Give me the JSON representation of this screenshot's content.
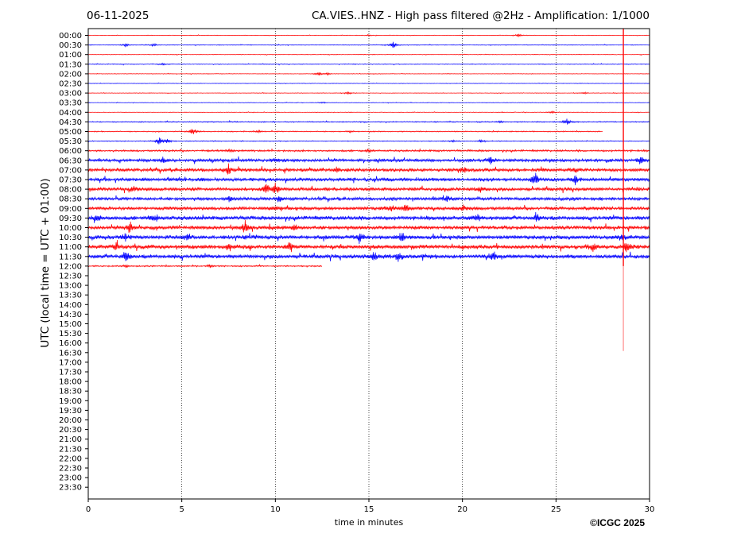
{
  "header": {
    "date": "06-11-2025",
    "title": "CA.VIES..HNZ - High pass filtered @2Hz - Amplification: 1/1000"
  },
  "copyright": "©ICGC 2025",
  "chart_data": {
    "type": "line",
    "title": "CA.VIES..HNZ - High pass filtered @2Hz - Amplification: 1/1000",
    "xlabel": "time in minutes",
    "ylabel": "UTC (local time = UTC + 01:00)",
    "xlim": [
      0,
      30
    ],
    "x_ticks": [
      0,
      5,
      10,
      15,
      20,
      25,
      30
    ],
    "grid": "vertical dotted lines at 5-minute ticks",
    "y_tick_labels": [
      "00:00",
      "00:30",
      "01:00",
      "01:30",
      "02:00",
      "02:30",
      "03:00",
      "03:30",
      "04:00",
      "04:30",
      "05:00",
      "05:30",
      "06:00",
      "06:30",
      "07:00",
      "07:30",
      "08:00",
      "08:30",
      "09:00",
      "09:30",
      "10:00",
      "10:30",
      "11:00",
      "11:30",
      "12:00",
      "12:30",
      "13:00",
      "13:30",
      "14:00",
      "14:30",
      "15:00",
      "15:30",
      "16:00",
      "16:30",
      "17:00",
      "17:30",
      "18:00",
      "18:30",
      "19:00",
      "19:30",
      "20:00",
      "20:30",
      "21:00",
      "21:30",
      "22:00",
      "22:30",
      "23:00",
      "23:30"
    ],
    "colors": {
      "even_rows": "#ff0000",
      "odd_rows": "#0000ff",
      "spike": "#ff8080"
    },
    "traces": [
      {
        "row": "00:00",
        "color": "red",
        "end_min": 30,
        "amp": 0.3,
        "events": [
          [
            15,
            1
          ],
          [
            23,
            1.5
          ]
        ]
      },
      {
        "row": "00:30",
        "color": "blue",
        "end_min": 30,
        "amp": 0.4,
        "events": [
          [
            2,
            2
          ],
          [
            3.5,
            1.5
          ],
          [
            16.3,
            4
          ]
        ]
      },
      {
        "row": "01:00",
        "color": "red",
        "end_min": 30,
        "amp": 0.3,
        "events": []
      },
      {
        "row": "01:30",
        "color": "blue",
        "end_min": 30,
        "amp": 0.4,
        "events": [
          [
            4,
            1
          ]
        ]
      },
      {
        "row": "02:00",
        "color": "red",
        "end_min": 30,
        "amp": 0.3,
        "events": [
          [
            12.3,
            2.5
          ],
          [
            12.8,
            1.5
          ]
        ]
      },
      {
        "row": "02:30",
        "color": "blue",
        "end_min": 30,
        "amp": 0.3,
        "events": []
      },
      {
        "row": "03:00",
        "color": "red",
        "end_min": 30,
        "amp": 0.3,
        "events": [
          [
            13.9,
            2
          ],
          [
            26.5,
            1.2
          ]
        ]
      },
      {
        "row": "03:30",
        "color": "blue",
        "end_min": 30,
        "amp": 0.3,
        "events": [
          [
            12.5,
            1
          ]
        ]
      },
      {
        "row": "04:00",
        "color": "red",
        "end_min": 30,
        "amp": 0.3,
        "events": [
          [
            24.8,
            1.5
          ]
        ]
      },
      {
        "row": "04:30",
        "color": "blue",
        "end_min": 30,
        "amp": 0.6,
        "events": [
          [
            22,
            1
          ],
          [
            25.6,
            4
          ]
        ]
      },
      {
        "row": "05:00",
        "color": "red",
        "end_min": 27.5,
        "amp": 0.6,
        "events": [
          [
            5.6,
            4
          ],
          [
            9.1,
            1.5
          ],
          [
            14,
            1
          ]
        ]
      },
      {
        "row": "05:30",
        "color": "blue",
        "end_min": 30,
        "amp": 0.5,
        "events": [
          [
            3.8,
            5
          ],
          [
            4.2,
            3
          ],
          [
            19.5,
            1.5
          ],
          [
            21,
            1.5
          ]
        ]
      },
      {
        "row": "06:00",
        "color": "red",
        "end_min": 30,
        "amp": 1.1,
        "events": [
          [
            7.5,
            2
          ],
          [
            15,
            2
          ]
        ]
      },
      {
        "row": "06:30",
        "color": "blue",
        "end_min": 30,
        "amp": 1.8,
        "events": [
          [
            4,
            3
          ],
          [
            10,
            3
          ],
          [
            21.5,
            4
          ],
          [
            29.5,
            5
          ]
        ]
      },
      {
        "row": "07:00",
        "color": "red",
        "end_min": 30,
        "amp": 2.0,
        "events": [
          [
            7.5,
            5
          ],
          [
            13.3,
            3
          ],
          [
            20,
            3
          ],
          [
            26,
            3
          ]
        ]
      },
      {
        "row": "07:30",
        "color": "blue",
        "end_min": 30,
        "amp": 2.0,
        "events": [
          [
            23.9,
            7
          ],
          [
            26,
            5
          ]
        ]
      },
      {
        "row": "08:00",
        "color": "red",
        "end_min": 30,
        "amp": 2.0,
        "events": [
          [
            2.5,
            3
          ],
          [
            9.5,
            7
          ],
          [
            10,
            6
          ],
          [
            21,
            4
          ]
        ]
      },
      {
        "row": "08:30",
        "color": "blue",
        "end_min": 30,
        "amp": 1.8,
        "events": [
          [
            7.6,
            3
          ],
          [
            10.2,
            4
          ],
          [
            19.2,
            4
          ]
        ]
      },
      {
        "row": "09:00",
        "color": "red",
        "end_min": 30,
        "amp": 2.0,
        "events": [
          [
            10,
            3
          ],
          [
            16.2,
            5
          ],
          [
            17,
            5
          ],
          [
            20,
            4
          ]
        ]
      },
      {
        "row": "09:30",
        "color": "blue",
        "end_min": 30,
        "amp": 2.4,
        "events": [
          [
            0.5,
            4
          ],
          [
            3.6,
            4
          ],
          [
            20.7,
            4
          ],
          [
            24,
            3
          ]
        ]
      },
      {
        "row": "10:00",
        "color": "red",
        "end_min": 30,
        "amp": 2.2,
        "events": [
          [
            2.2,
            7
          ],
          [
            8.4,
            7
          ],
          [
            11,
            4
          ]
        ]
      },
      {
        "row": "10:30",
        "color": "blue",
        "end_min": 30,
        "amp": 2.4,
        "events": [
          [
            2,
            5
          ],
          [
            5.3,
            4
          ],
          [
            14.5,
            6
          ],
          [
            16.8,
            6
          ],
          [
            28.5,
            5
          ]
        ]
      },
      {
        "row": "11:00",
        "color": "red",
        "end_min": 30,
        "amp": 2.4,
        "events": [
          [
            1.5,
            4
          ],
          [
            7.5,
            5
          ],
          [
            10.8,
            6
          ],
          [
            27,
            5
          ],
          [
            28.8,
            7
          ]
        ]
      },
      {
        "row": "11:30",
        "color": "blue",
        "end_min": 30,
        "amp": 2.4,
        "events": [
          [
            2,
            6
          ],
          [
            15.3,
            6
          ],
          [
            16.6,
            5
          ],
          [
            21.6,
            7
          ]
        ]
      },
      {
        "row": "12:00",
        "color": "red",
        "end_min": 12.5,
        "amp": 0.8,
        "events": [
          [
            2,
            1.5
          ],
          [
            6.5,
            1.5
          ]
        ]
      }
    ],
    "vertical_spike": {
      "x_min": 28.6,
      "from_row": "00:00",
      "to_row": "16:30"
    }
  }
}
